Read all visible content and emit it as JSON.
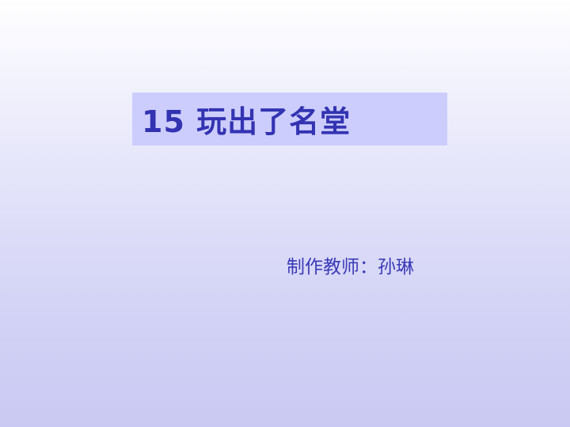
{
  "slide": {
    "title": "15  玩出了名堂",
    "author_line": "制作教师：孙琳"
  },
  "colors": {
    "title_box_background": "#cccdfd",
    "title_text": "#3333b2",
    "author_text": "#3a3ab8",
    "background_top": "#ffffff",
    "background_bottom": "#c9c9f3"
  }
}
